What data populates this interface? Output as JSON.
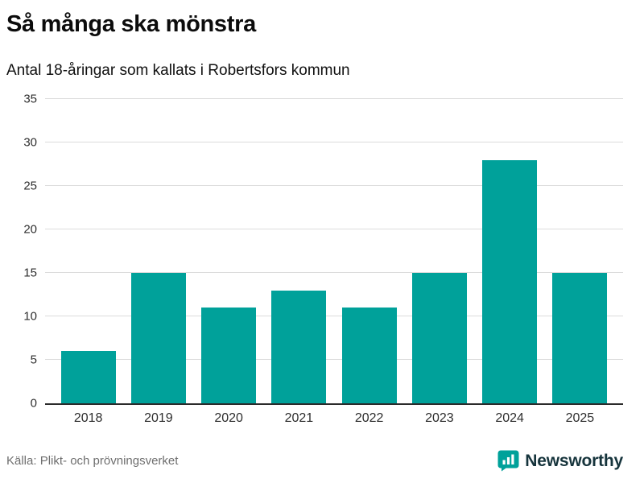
{
  "header": {
    "title": "Så många ska mönstra",
    "subtitle": "Antal 18-åringar som kallats i Robertsfors kommun"
  },
  "chart_data": {
    "type": "bar",
    "categories": [
      "2018",
      "2019",
      "2020",
      "2021",
      "2022",
      "2023",
      "2024",
      "2025"
    ],
    "values": [
      6,
      15,
      11,
      13,
      11,
      15,
      28,
      15
    ],
    "title": "Så många ska mönstra",
    "subtitle": "Antal 18-åringar som kallats i Robertsfors kommun",
    "xlabel": "",
    "ylabel": "",
    "ylim": [
      0,
      35
    ],
    "yticks": [
      0,
      5,
      10,
      15,
      20,
      25,
      30,
      35
    ],
    "bar_color": "#00a19a",
    "grid": "horizontal",
    "legend": "none"
  },
  "footer": {
    "source": "Källa: Plikt- och prövningsverket",
    "brand": "Newsworthy",
    "brand_color": "#00a19a"
  }
}
